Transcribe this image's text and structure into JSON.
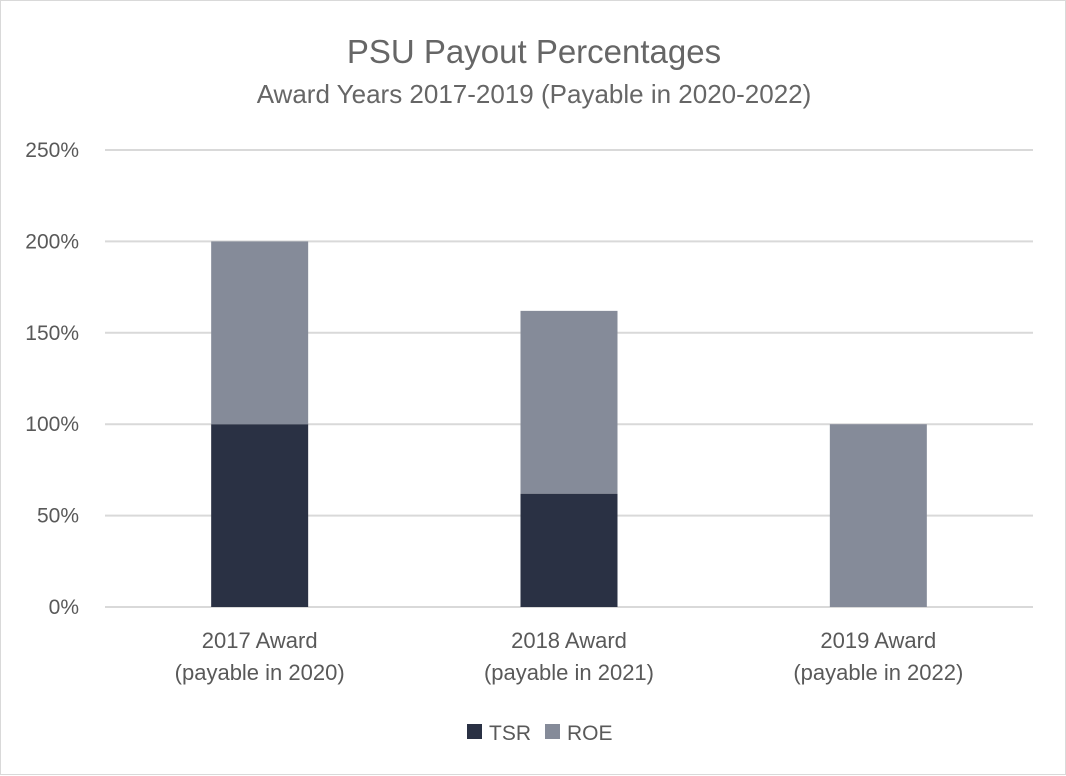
{
  "chart_data": {
    "type": "bar",
    "stacked": true,
    "title": "PSU Payout Percentages",
    "subtitle": "Award Years 2017-2019 (Payable in 2020-2022)",
    "categories": [
      [
        "2017 Award",
        "(payable in 2020)"
      ],
      [
        "2018 Award",
        "(payable in 2021)"
      ],
      [
        "2019 Award",
        "(payable in 2022)"
      ]
    ],
    "series": [
      {
        "name": "TSR",
        "color": "#2a3144",
        "values": [
          100,
          62,
          0
        ]
      },
      {
        "name": "ROE",
        "color": "#858b99",
        "values": [
          100,
          100,
          100
        ]
      }
    ],
    "ylim": [
      0,
      250
    ],
    "y_ticks": [
      "0%",
      "50%",
      "100%",
      "150%",
      "200%",
      "250%"
    ],
    "y_tick_values": [
      0,
      50,
      100,
      150,
      200,
      250
    ],
    "grid": true,
    "legend_position": "bottom",
    "gridline_color": "#d9d9d9"
  }
}
